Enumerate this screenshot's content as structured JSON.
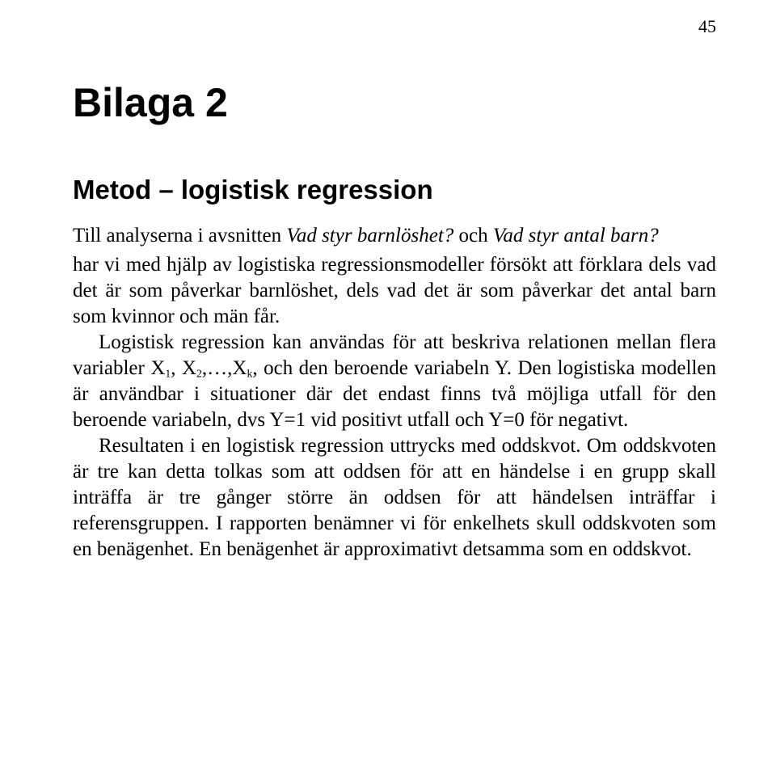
{
  "page_number": "45",
  "title": "Bilaga 2",
  "subtitle": "Metod – logistisk regression",
  "lead_prefix": "Till analyserna i avsnitten ",
  "lead_q1": "Vad styr barnlöshet?",
  "lead_mid": " och ",
  "lead_q2": "Vad styr antal barn?",
  "p1": "har vi med hjälp av logistiska regressionsmodeller försökt att förklara dels vad det är som påverkar barnlöshet, dels vad det är som påverkar det antal barn som kvinnor och män får.",
  "p2_a": "Logistisk regression kan användas för att beskriva relationen mellan flera variabler X",
  "p2_s1": "1",
  "p2_b": ", X",
  "p2_s2": "2",
  "p2_c": ",…,X",
  "p2_s3": "k",
  "p2_d": ", och den beroende variabeln Y. Den logistiska modellen är användbar i situationer där det endast finns två möjliga utfall för den beroende variabeln, dvs Y=1 vid positivt utfall och Y=0 för negativt.",
  "p3": "Resultaten i en logistisk regression uttrycks med oddskvot. Om oddskvoten är tre kan detta tolkas som att oddsen för att en händelse i en grupp skall inträffa är tre gånger större än oddsen för att händelsen inträffar i referensgruppen. I rapporten benämner vi för enkelhets skull oddskvoten som en benägenhet. En benägenhet är approximativt detsamma som en oddskvot."
}
